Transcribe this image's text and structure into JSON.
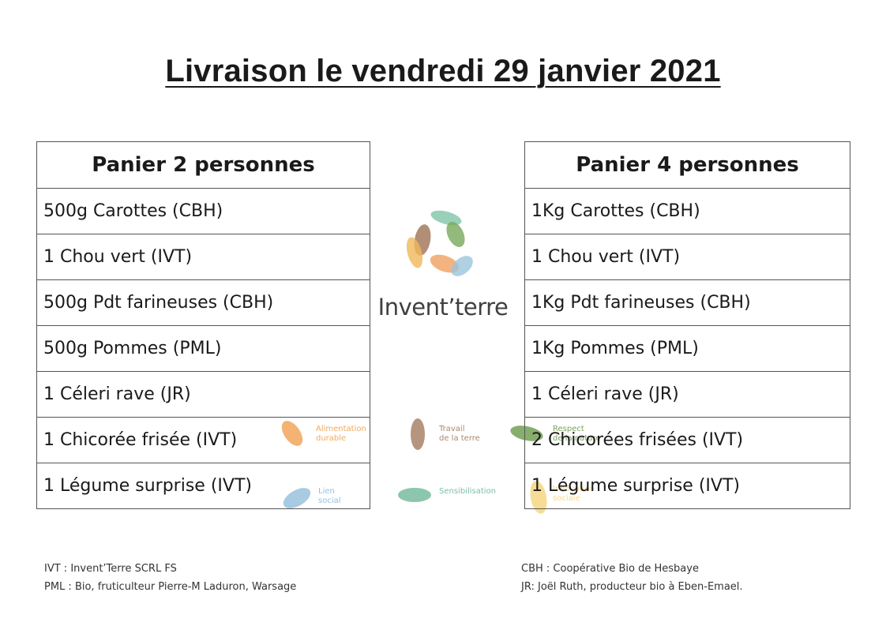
{
  "title": "Livraison le vendredi 29 janvier 2021",
  "basket_2": {
    "header": "Panier 2 personnes",
    "items": [
      "500g Carottes (CBH)",
      "1 Chou vert (IVT)",
      "500g Pdt farineuses (CBH)",
      "500g Pommes (PML)",
      "1 Céleri rave (JR)",
      "1 Chicorée frisée (IVT)",
      "1 Légume surprise (IVT)"
    ]
  },
  "basket_4": {
    "header": "Panier 4 personnes",
    "items": [
      "1Kg Carottes (CBH)",
      "1 Chou vert (IVT)",
      "1Kg Pdt farineuses (CBH)",
      "1Kg Pommes (PML)",
      "1 Céleri rave (JR)",
      "2 Chicorées frisées (IVT)",
      "1 Légume surprise (IVT)"
    ]
  },
  "logo": {
    "name": "Invent’terre",
    "icon": "leaves-circle-icon",
    "colors": [
      "#7fc4a8",
      "#78a85a",
      "#a47a5e",
      "#f0b85a",
      "#f0a060",
      "#9cc4dc"
    ]
  },
  "themes": {
    "alimentation": {
      "line1": "Alimentation",
      "line2": "durable",
      "color": "#f0a050"
    },
    "travail": {
      "line1": "Travail",
      "line2": "de la terre",
      "color": "#a47a5e"
    },
    "respect": {
      "line1": "Respect",
      "line2": "de la nature",
      "color": "#6a9a4a"
    },
    "lien": {
      "line1": "Lien",
      "line2": "social",
      "color": "#8bb8d8"
    },
    "sensibilisation": {
      "line1": "Sensibilisation",
      "color": "#6fb89a"
    },
    "innovation": {
      "line1": "Innovation",
      "line2": "sociale",
      "color": "#f0c040"
    }
  },
  "footnotes": {
    "left": [
      "IVT : Invent’Terre SCRL FS",
      "PML : Bio, fruticulteur Pierre-M Laduron, Warsage"
    ],
    "right": [
      "CBH : Coopérative Bio de Hesbaye",
      "JR: Joël Ruth, producteur bio à Eben-Emael."
    ]
  }
}
